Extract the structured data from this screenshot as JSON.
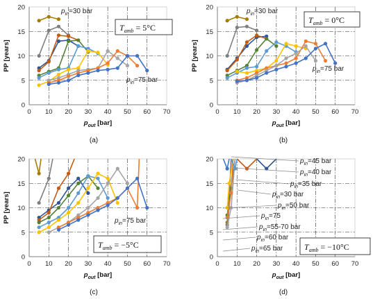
{
  "figure": {
    "subcaptions": [
      "(a)",
      "(b)",
      "(c)",
      "(d)"
    ]
  },
  "chart_data": [
    {
      "id": "a",
      "type": "line",
      "xlabel_main": "p",
      "xlabel_sub": "out",
      "xlabel_unit": " [bar]",
      "ylabel": "PP [years]",
      "xlim": [
        0,
        70
      ],
      "ylim": [
        0,
        20
      ],
      "xticks": [
        "0",
        "10",
        "20",
        "30",
        "40",
        "50",
        "60",
        "70"
      ],
      "yticks": [
        "0",
        "5",
        "10",
        "15",
        "20"
      ],
      "grid": true,
      "tamb_label": "T",
      "tamb_sub": "amb",
      "tamb_value": " = 5°C",
      "annotations": [
        {
          "main": "p",
          "sub": "in",
          "rest": "=30 bar"
        },
        {
          "main": "p",
          "sub": "in",
          "rest": "=75 bar"
        }
      ],
      "series": [
        {
          "color": "#a67c00",
          "x": [
            5,
            10,
            15
          ],
          "y": [
            17.2,
            18,
            17.5
          ]
        },
        {
          "color": "#7f7f7f",
          "x": [
            5,
            10,
            15,
            20
          ],
          "y": [
            10,
            15.2,
            16,
            14.2
          ]
        },
        {
          "color": "#2f5597",
          "x": [
            5,
            10,
            15,
            20,
            25
          ],
          "y": [
            7.5,
            9,
            13,
            13.2,
            12
          ]
        },
        {
          "color": "#c55a11",
          "x": [
            5,
            10,
            15,
            20,
            25
          ],
          "y": [
            7,
            8.8,
            14.2,
            14,
            13.2
          ]
        },
        {
          "color": "#548235",
          "x": [
            5,
            10,
            15,
            20,
            25,
            30
          ],
          "y": [
            6,
            6.8,
            7.5,
            13,
            13.2,
            10.8
          ]
        },
        {
          "color": "#5b9bd5",
          "x": [
            5,
            10,
            15,
            20,
            25,
            30,
            35
          ],
          "y": [
            5.5,
            6.5,
            7.2,
            7.5,
            12,
            11.5,
            10.5
          ]
        },
        {
          "color": "#ffc000",
          "x": [
            5,
            10,
            15,
            20,
            25,
            30,
            35,
            40
          ],
          "y": [
            4,
            4.8,
            6.2,
            7.2,
            7.5,
            11,
            10.7,
            8.2
          ]
        },
        {
          "color": "#a5a5a5",
          "x": [
            10,
            15,
            20,
            25,
            30,
            35,
            40,
            45,
            50
          ],
          "y": [
            5,
            5.5,
            6.2,
            7,
            7.2,
            7.5,
            11,
            9.5,
            8
          ]
        },
        {
          "color": "#ed7d31",
          "x": [
            10,
            15,
            20,
            25,
            30,
            35,
            40,
            45,
            50,
            55
          ],
          "y": [
            4.5,
            5,
            5.8,
            6.5,
            7,
            7.5,
            8.5,
            11,
            10,
            8
          ]
        },
        {
          "color": "#4472c4",
          "x": [
            10,
            15,
            20,
            25,
            30,
            35,
            40,
            45,
            50,
            55,
            60
          ],
          "y": [
            4.2,
            4.5,
            5,
            6,
            6.5,
            7,
            7.2,
            7.5,
            10,
            10,
            7
          ]
        }
      ]
    },
    {
      "id": "b",
      "type": "line",
      "xlabel_main": "p",
      "xlabel_sub": "out",
      "xlabel_unit": " [bar]",
      "ylabel": "PP [years]",
      "xlim": [
        0,
        70
      ],
      "ylim": [
        0,
        20
      ],
      "xticks": [
        "0",
        "10",
        "20",
        "30",
        "40",
        "50",
        "60",
        "70"
      ],
      "yticks": [
        "0",
        "5",
        "10",
        "15",
        "20"
      ],
      "grid": true,
      "tamb_label": "T",
      "tamb_sub": "amb",
      "tamb_value": " = 0°C",
      "annotations": [
        {
          "main": "p",
          "sub": "in",
          "rest": "=30 bar"
        },
        {
          "main": "p",
          "sub": "in",
          "rest": "=75 bar"
        }
      ],
      "series": [
        {
          "color": "#a67c00",
          "x": [
            5,
            10,
            15
          ],
          "y": [
            17.2,
            18,
            17.5
          ]
        },
        {
          "color": "#7f7f7f",
          "x": [
            5,
            10,
            15,
            20
          ],
          "y": [
            10,
            15.8,
            16,
            15.2
          ]
        },
        {
          "color": "#2f5597",
          "x": [
            5,
            10,
            15,
            20,
            25
          ],
          "y": [
            7.2,
            9.5,
            12,
            13.8,
            14
          ]
        },
        {
          "color": "#c55a11",
          "x": [
            5,
            10,
            15,
            20,
            25
          ],
          "y": [
            7,
            9.2,
            12.8,
            14.2,
            13.5
          ]
        },
        {
          "color": "#548235",
          "x": [
            5,
            10,
            15,
            20,
            25,
            30
          ],
          "y": [
            6,
            7,
            8,
            11.2,
            13.5,
            12
          ]
        },
        {
          "color": "#5b9bd5",
          "x": [
            5,
            10,
            15,
            20,
            25,
            30,
            35,
            40
          ],
          "y": [
            5.5,
            6.5,
            7.5,
            7.8,
            11,
            12.8,
            12,
            10.8
          ]
        },
        {
          "color": "#ffc000",
          "x": [
            10,
            15,
            20,
            25,
            30,
            35,
            40,
            45
          ],
          "y": [
            6.8,
            6.5,
            7,
            7.5,
            9,
            12.5,
            12,
            11.5
          ]
        },
        {
          "color": "#ed7d31",
          "x": [
            10,
            15,
            20,
            25,
            30,
            35,
            40,
            45,
            50,
            55
          ],
          "y": [
            5,
            5.5,
            6.5,
            7.5,
            8,
            8.5,
            9.5,
            13,
            12.5,
            9
          ]
        },
        {
          "color": "#a5a5a5",
          "x": [
            10,
            15,
            20,
            25,
            30,
            35,
            40,
            45,
            50
          ],
          "y": [
            4.5,
            5,
            6,
            7,
            8,
            9.5,
            10.5,
            12,
            9
          ]
        },
        {
          "color": "#4472c4",
          "x": [
            10,
            15,
            20,
            25,
            30,
            35,
            40,
            45,
            50,
            55,
            60
          ],
          "y": [
            4.8,
            5,
            5.5,
            6.5,
            7.2,
            7.8,
            8.5,
            9.5,
            11.5,
            12.5,
            8.5
          ]
        }
      ]
    },
    {
      "id": "c",
      "type": "line",
      "xlabel_main": "p",
      "xlabel_sub": "out",
      "xlabel_unit": " [bar]",
      "ylabel": "PP [years]",
      "xlim": [
        0,
        70
      ],
      "ylim": [
        0,
        20
      ],
      "xticks": [
        "0",
        "10",
        "20",
        "30",
        "40",
        "50",
        "60",
        "70"
      ],
      "yticks": [
        "0",
        "5",
        "10",
        "15",
        "20"
      ],
      "grid": true,
      "tamb_label": "T",
      "tamb_sub": "amb",
      "tamb_value": " = −5°C",
      "annotations": [
        {
          "main": "p",
          "sub": "in",
          "rest": "=75 bar"
        }
      ],
      "series": [
        {
          "color": "#a67c00",
          "x": [
            3,
            5,
            6
          ],
          "y": [
            20,
            17,
            20
          ]
        },
        {
          "color": "#7f7f7f",
          "x": [
            5,
            10,
            12
          ],
          "y": [
            11,
            16,
            20
          ]
        },
        {
          "color": "#2f5597",
          "x": [
            5,
            10,
            15,
            20,
            25,
            30
          ],
          "y": [
            8,
            9.5,
            11,
            14,
            16,
            13
          ]
        },
        {
          "color": "#c55a11",
          "x": [
            5,
            10,
            15,
            20,
            23
          ],
          "y": [
            7.5,
            9,
            14,
            17,
            20
          ]
        },
        {
          "color": "#548235",
          "x": [
            5,
            10,
            15,
            20,
            25,
            30,
            35
          ],
          "y": [
            7,
            8,
            10,
            12.5,
            15,
            16.5,
            14
          ]
        },
        {
          "color": "#5b9bd5",
          "x": [
            5,
            10,
            15,
            20,
            25,
            30,
            35,
            40
          ],
          "y": [
            6,
            7,
            8,
            10,
            13,
            16.5,
            16,
            12
          ]
        },
        {
          "color": "#ffc000",
          "x": [
            5,
            10,
            15,
            20,
            25,
            30,
            35,
            40,
            45
          ],
          "y": [
            5,
            6,
            7.5,
            9,
            11,
            14,
            17,
            16,
            11
          ]
        },
        {
          "color": "#a5a5a5",
          "x": [
            10,
            15,
            20,
            25,
            30,
            35,
            40,
            45,
            50
          ],
          "y": [
            5,
            6,
            7,
            8.5,
            10,
            12,
            15,
            18,
            15
          ]
        },
        {
          "color": "#ed7d31",
          "x": [
            15,
            20,
            25,
            30,
            35,
            40,
            45,
            50,
            55,
            56
          ],
          "y": [
            6,
            7,
            8,
            9,
            10,
            11,
            12,
            14,
            10,
            20
          ]
        },
        {
          "color": "#4472c4",
          "x": [
            15,
            20,
            25,
            30,
            35,
            40,
            45,
            50,
            55,
            60
          ],
          "y": [
            5.5,
            6.5,
            7.5,
            8.5,
            9.5,
            10.5,
            12,
            14,
            16,
            10
          ]
        }
      ]
    },
    {
      "id": "d",
      "type": "line",
      "xlabel_main": "p",
      "xlabel_sub": "out",
      "xlabel_unit": " [bar]",
      "ylabel": "",
      "xlim": [
        0,
        70
      ],
      "ylim": [
        0,
        20
      ],
      "xticks": [
        "0",
        "10",
        "20",
        "30",
        "40",
        "50",
        "60",
        "70"
      ],
      "yticks": [
        "0",
        "5",
        "10",
        "15",
        "20"
      ],
      "grid": true,
      "tamb_label": "T",
      "tamb_sub": "amb",
      "tamb_value": " = −10°C",
      "annotations": [
        {
          "main": "p",
          "sub": "in",
          "rest": "=45 bar"
        },
        {
          "main": "p",
          "sub": "in",
          "rest": "=40 bar"
        },
        {
          "main": "p",
          "sub": "in",
          "rest": "=35 bar"
        },
        {
          "main": "p",
          "sub": "in",
          "rest": "=30 bar"
        },
        {
          "main": "p",
          "sub": "in",
          "rest": "=50 bar"
        },
        {
          "main": "p",
          "sub": "in",
          "rest": "=75"
        },
        {
          "main": "p",
          "sub": "in",
          "rest": "=55-70 bar"
        },
        {
          "main": "p",
          "sub": "in",
          "rest": "=60 bar"
        },
        {
          "main": "p",
          "sub": "in",
          "rest": "=65 bar"
        }
      ],
      "series": [
        {
          "color": "#a67c00",
          "x": [
            5,
            6,
            7
          ],
          "y": [
            7,
            12,
            20
          ]
        },
        {
          "color": "#7f7f7f",
          "x": [
            5,
            6,
            7
          ],
          "y": [
            6.5,
            10,
            20
          ]
        },
        {
          "color": "#548235",
          "x": [
            5,
            7,
            9
          ],
          "y": [
            8.5,
            14,
            20
          ]
        },
        {
          "color": "#ffc000",
          "x": [
            5,
            6,
            8
          ],
          "y": [
            10,
            15,
            20
          ]
        },
        {
          "color": "#a5a5a5",
          "x": [
            5,
            7,
            9
          ],
          "y": [
            6,
            10,
            20
          ]
        },
        {
          "color": "#ed7d31",
          "x": [
            5,
            7,
            8
          ],
          "y": [
            8,
            13,
            20
          ]
        },
        {
          "color": "#c55a11",
          "x": [
            10,
            15,
            20
          ],
          "y": [
            20,
            18,
            20
          ]
        },
        {
          "color": "#2f5597",
          "x": [
            20,
            25,
            30
          ],
          "y": [
            20,
            18,
            20
          ]
        },
        {
          "color": "#5b9bd5",
          "x": [
            7,
            9,
            10
          ],
          "y": [
            20,
            18,
            20
          ]
        },
        {
          "color": "#4472c4",
          "x": [
            3,
            5,
            6
          ],
          "y": [
            20,
            18,
            20
          ]
        }
      ]
    }
  ]
}
